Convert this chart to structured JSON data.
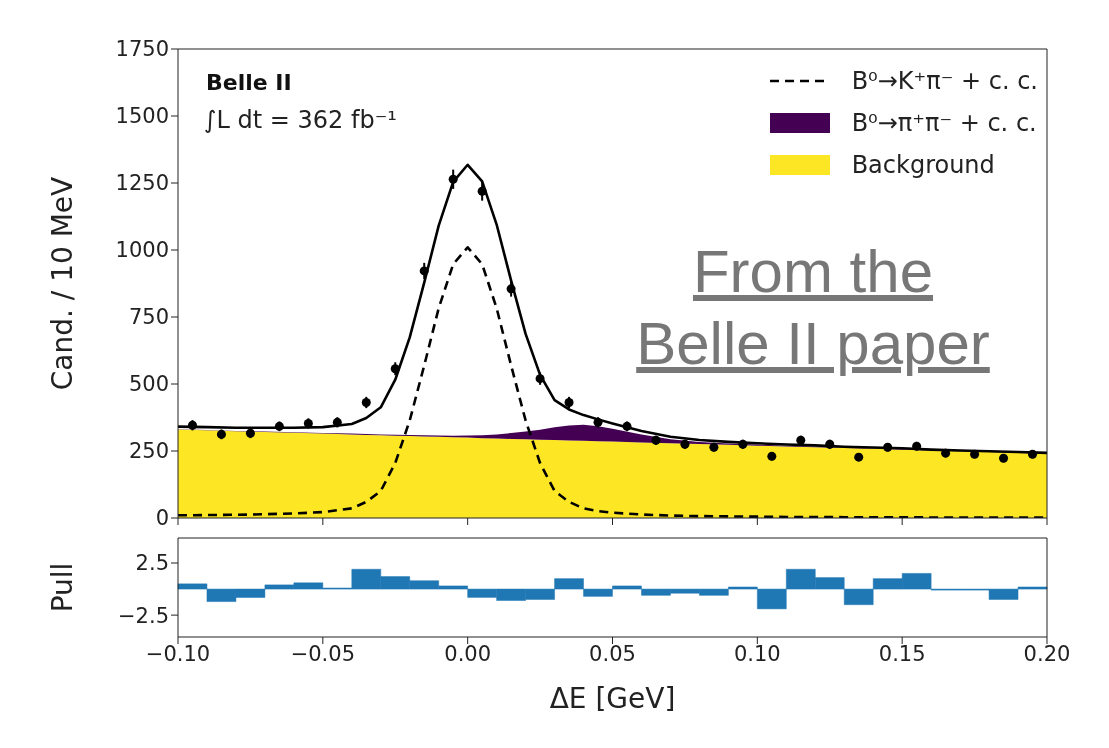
{
  "chart_data": [
    {
      "type": "line",
      "ylabel": "Cand. / 10 MeV",
      "xlim": [
        -0.1,
        0.2
      ],
      "xticks": [
        {
          "value": -0.1,
          "label": null
        },
        {
          "value": -0.05,
          "label": null
        },
        {
          "value": 0,
          "label": null
        },
        {
          "value": 0.05,
          "label": null
        },
        {
          "value": 0.1,
          "label": null
        },
        {
          "value": 0.15,
          "label": null
        },
        {
          "value": 0.2,
          "label": null
        }
      ],
      "ylim": [
        0,
        1750
      ],
      "yticks": [
        0,
        250,
        500,
        750,
        1000,
        1250,
        1500,
        1750
      ],
      "tick_labels": "y",
      "stacked": true,
      "legend": "top right",
      "annotations": [
        "Belle II",
        "∫L dt = 362 fb⁻¹",
        "From the Belle II paper"
      ],
      "x": [
        -0.1,
        -0.09,
        -0.08,
        -0.07,
        -0.06,
        -0.05,
        -0.04,
        -0.035,
        -0.03,
        -0.025,
        -0.02,
        -0.015,
        -0.01,
        -0.005,
        0,
        0.005,
        0.01,
        0.015,
        0.02,
        0.025,
        0.03,
        0.035,
        0.04,
        0.045,
        0.05,
        0.06,
        0.07,
        0.08,
        0.09,
        0.1,
        0.11,
        0.12,
        0.13,
        0.14,
        0.15,
        0.16,
        0.17,
        0.18,
        0.19,
        0.2
      ],
      "series": [
        {
          "type": "area",
          "name": "Background",
          "color": "#fde725",
          "values": [
            330,
            327,
            324,
            321,
            318,
            315,
            312,
            310,
            309,
            307,
            306,
            304,
            303,
            301,
            300,
            298,
            297,
            295,
            294,
            292,
            291,
            289,
            288,
            286,
            285,
            282,
            279,
            276,
            273,
            270,
            267,
            264,
            261,
            258,
            255,
            252,
            249,
            246,
            243,
            240
          ]
        },
        {
          "type": "area",
          "name": "B⁰→π⁺π⁻ + c. c.",
          "color": "#440154",
          "values": [
            1,
            1,
            1,
            2,
            2,
            2,
            3,
            3,
            3,
            4,
            4,
            5,
            5,
            6,
            8,
            11,
            15,
            22,
            29,
            37,
            48,
            56,
            60,
            56,
            48,
            30,
            15,
            8,
            5,
            4,
            3,
            3,
            2,
            2,
            2,
            1,
            1,
            1,
            1,
            1
          ]
        },
        {
          "type": "line",
          "name": "B⁰→K⁺π⁻ + c. c.",
          "color": "#000000",
          "line_style": "dashed",
          "values": [
            10,
            11,
            12,
            14,
            17,
            22,
            36,
            60,
            101,
            205,
            364,
            569,
            783,
            947,
            1010,
            947,
            783,
            569,
            364,
            205,
            101,
            60,
            36,
            26,
            20,
            13,
            9,
            7,
            6,
            5,
            4,
            4,
            3,
            3,
            3,
            2,
            2,
            2,
            2,
            2
          ]
        },
        {
          "type": "line",
          "color": "#000000",
          "line_style": "solid",
          "values": [
            341,
            339,
            337,
            337,
            337,
            339,
            351,
            373,
            413,
            516,
            674,
            878,
            1091,
            1254,
            1318,
            1256,
            1095,
            886,
            687,
            534,
            440,
            405,
            384,
            368,
            353,
            325,
            303,
            291,
            284,
            279,
            274,
            271,
            266,
            263,
            260,
            255,
            252,
            249,
            246,
            243
          ]
        },
        {
          "type": "scatter",
          "color": "#000000",
          "marker": "circle",
          "x": [
            -0.095,
            -0.085,
            -0.075,
            -0.065,
            -0.055,
            -0.045,
            -0.035,
            -0.025,
            -0.015,
            -0.005,
            0.005,
            0.015,
            0.025,
            0.035,
            0.045,
            0.055,
            0.065,
            0.075,
            0.085,
            0.095,
            0.105,
            0.115,
            0.125,
            0.135,
            0.145,
            0.155,
            0.165,
            0.175,
            0.185,
            0.195
          ],
          "values": [
            346,
            312,
            316,
            342,
            353,
            357,
            431,
            557,
            922,
            1264,
            1219,
            855,
            520,
            431,
            357,
            342,
            290,
            275,
            264,
            275,
            230,
            290,
            275,
            227,
            264,
            268,
            242,
            238,
            223,
            238
          ],
          "errors": [
            19,
            18,
            18,
            18,
            19,
            19,
            21,
            24,
            30,
            36,
            35,
            29,
            23,
            21,
            19,
            18,
            17,
            17,
            16,
            17,
            15,
            17,
            17,
            15,
            16,
            16,
            16,
            15,
            15,
            15
          ]
        }
      ]
    },
    {
      "type": "histogram",
      "xlabel": "ΔE [GeV]",
      "ylabel": "Pull",
      "color": "#1f77b4",
      "xlim": [
        -0.1,
        0.2
      ],
      "xticks": [
        {
          "value": -0.1,
          "label": "−0.10"
        },
        {
          "value": -0.05,
          "label": "−0.05"
        },
        {
          "value": 0,
          "label": "0.00"
        },
        {
          "value": 0.05,
          "label": "0.05"
        },
        {
          "value": 0.1,
          "label": "0.10"
        },
        {
          "value": 0.15,
          "label": "0.15"
        },
        {
          "value": 0.2,
          "label": "0.20"
        }
      ],
      "ylim": [
        -4.6,
        4.9
      ],
      "yticks": [
        {
          "value": -2.5,
          "label": "−2.5"
        },
        2.5
      ],
      "bins": [
        -0.1,
        -0.09,
        -0.08,
        -0.07,
        -0.06,
        -0.05,
        -0.04,
        -0.03,
        -0.02,
        -0.01,
        0,
        0.01,
        0.02,
        0.03,
        0.04,
        0.05,
        0.06,
        0.07,
        0.08,
        0.09,
        0.1,
        0.11,
        0.12,
        0.13,
        0.14,
        0.15,
        0.16,
        0.17,
        0.18,
        0.19,
        0.2
      ],
      "values": [
        0.5,
        -1.2,
        -0.8,
        0.4,
        0.6,
        0.1,
        1.9,
        1.2,
        0.8,
        0.3,
        -0.8,
        -1.1,
        -1.0,
        1.0,
        -0.7,
        0.3,
        -0.6,
        -0.4,
        -0.6,
        0.2,
        -1.9,
        1.9,
        1.1,
        -1.5,
        1.0,
        1.5,
        -0.1,
        -0.1,
        -1.0,
        0.2
      ]
    }
  ]
}
